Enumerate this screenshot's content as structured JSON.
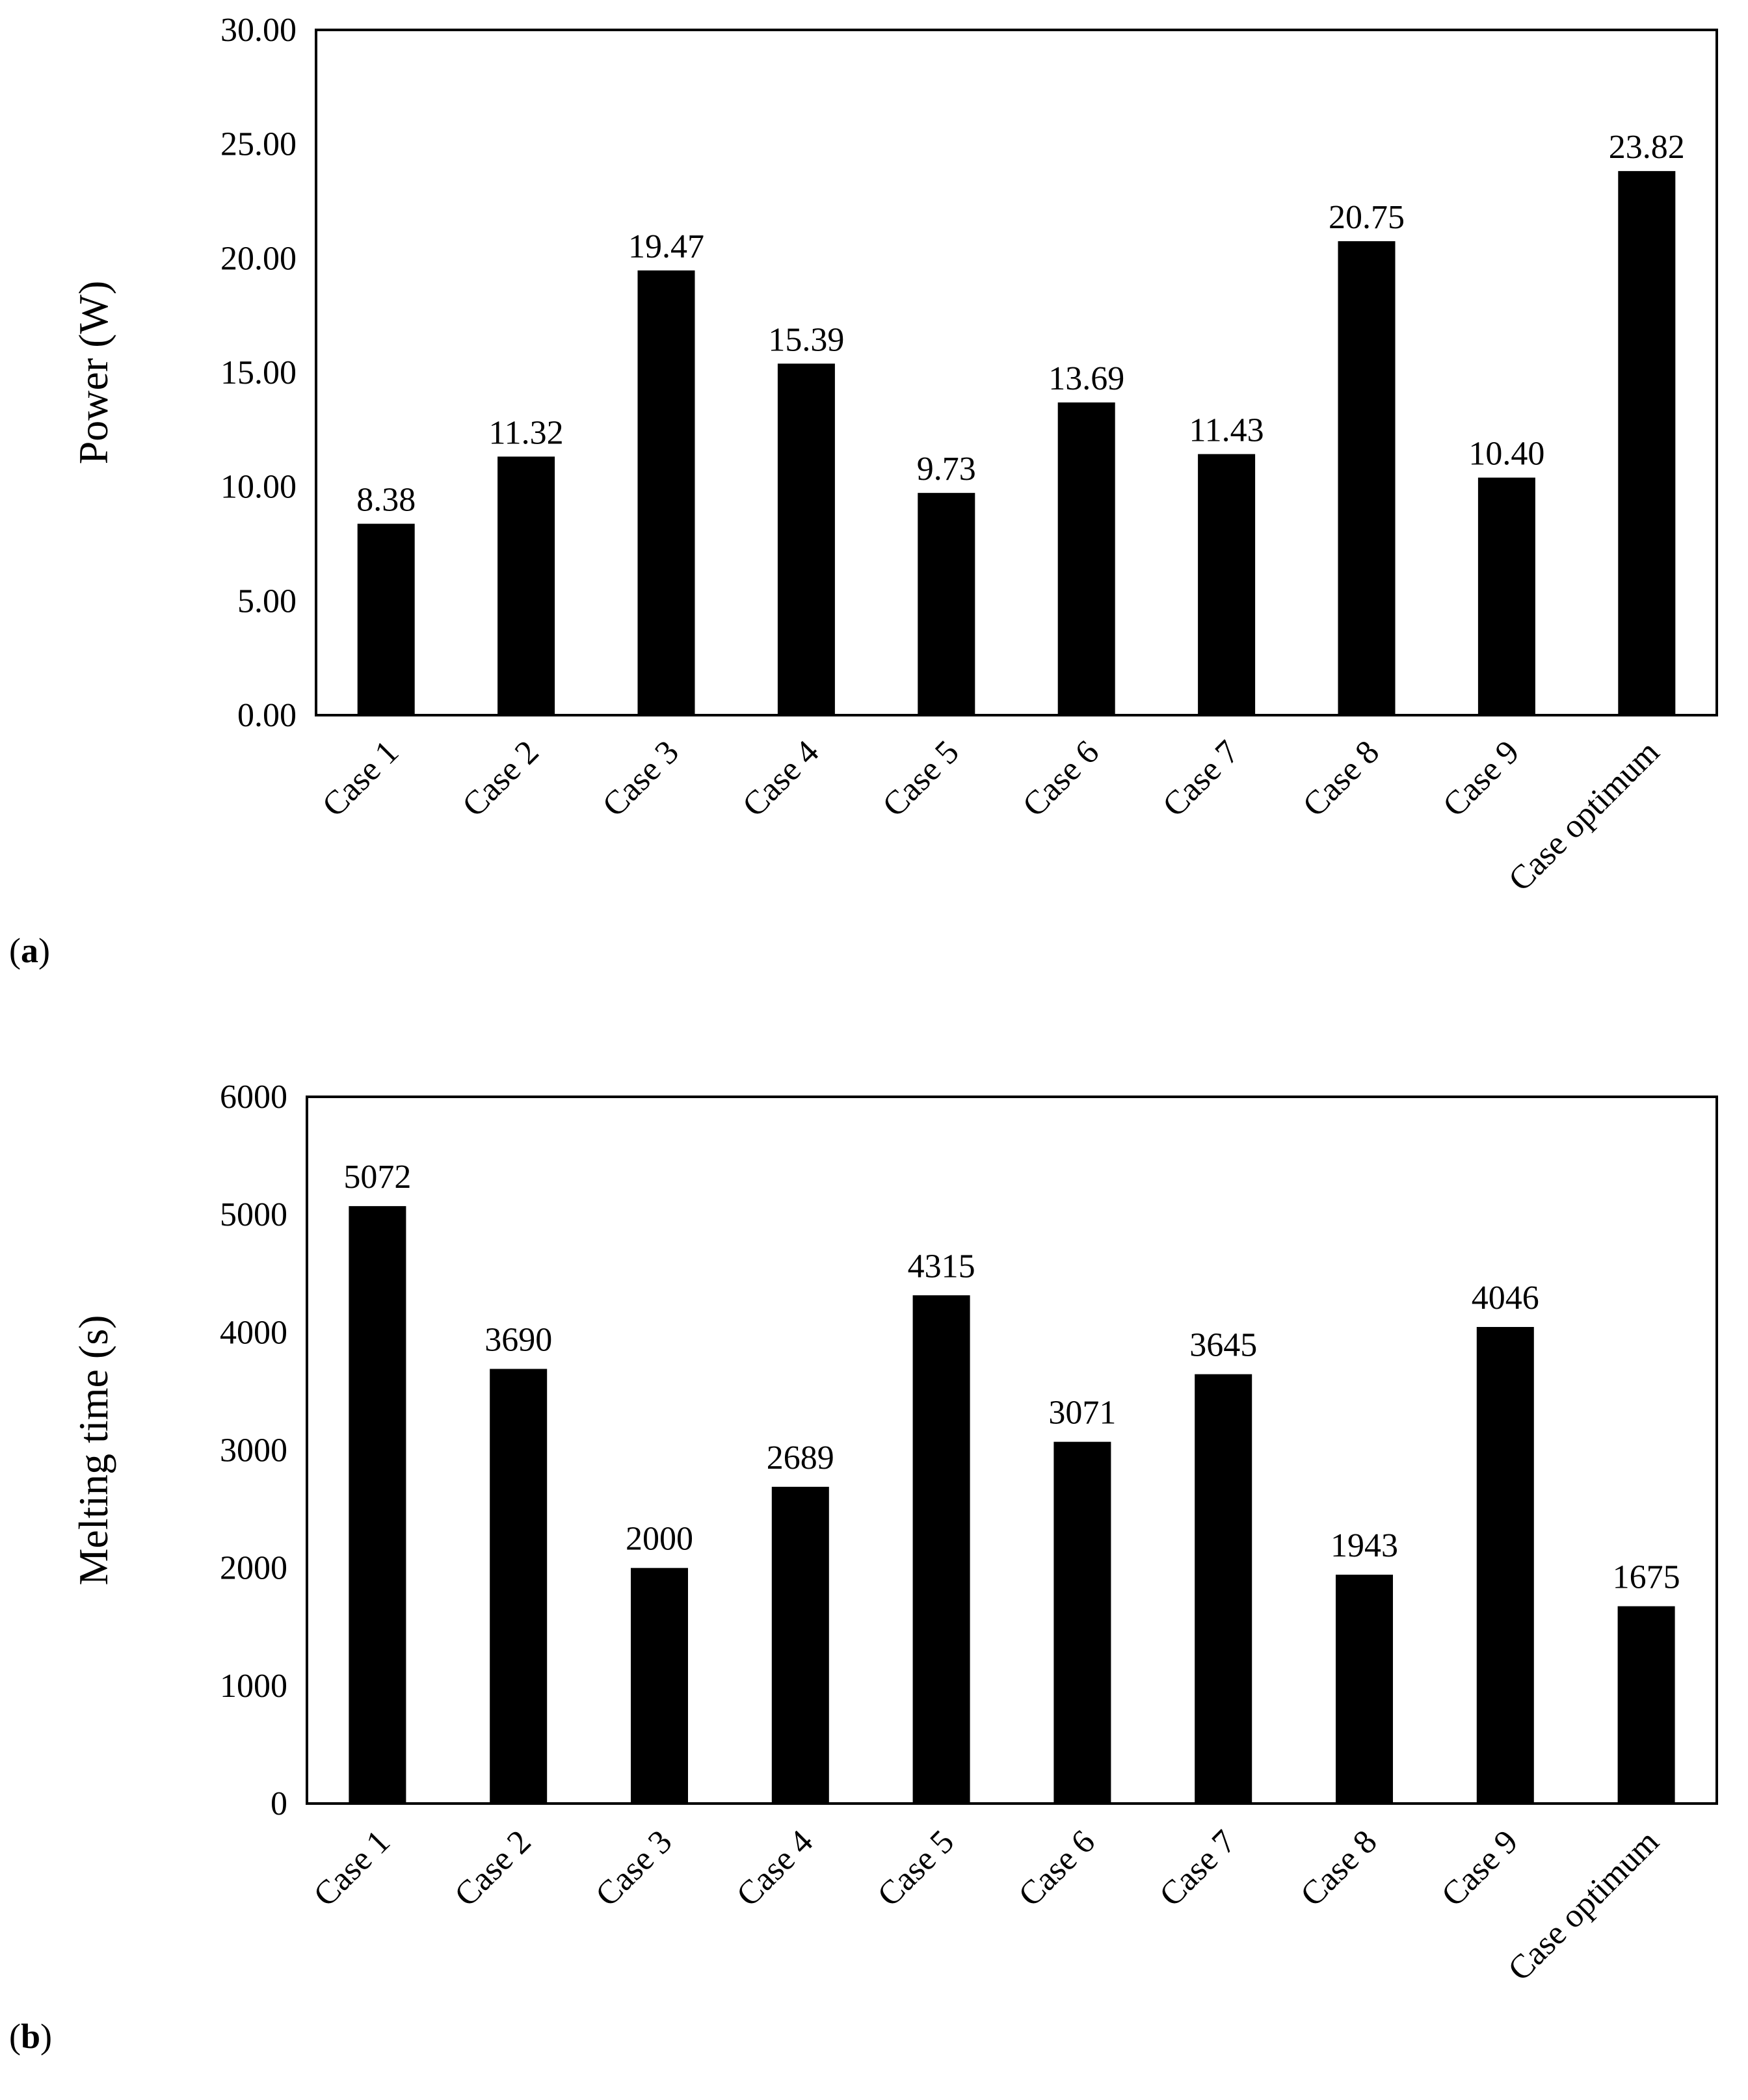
{
  "panels": [
    {
      "label_open": "(",
      "label_letter": "a",
      "label_close": ")"
    },
    {
      "label_open": "(",
      "label_letter": "b",
      "label_close": ")"
    }
  ],
  "chart_data": [
    {
      "type": "bar",
      "title": "",
      "xlabel": "",
      "ylabel": "Power (W)",
      "categories": [
        "Case 1",
        "Case 2",
        "Case 3",
        "Case 4",
        "Case 5",
        "Case 6",
        "Case 7",
        "Case 8",
        "Case 9",
        "Case optimum"
      ],
      "values": [
        8.38,
        11.32,
        19.47,
        15.39,
        9.73,
        13.69,
        11.43,
        20.75,
        10.4,
        23.82
      ],
      "value_labels": [
        "8.38",
        "11.32",
        "19.47",
        "15.39",
        "9.73",
        "13.69",
        "11.43",
        "20.75",
        "10.40",
        "23.82"
      ],
      "yticks": [
        "0.00",
        "5.00",
        "10.00",
        "15.00",
        "20.00",
        "25.00",
        "30.00"
      ],
      "ylim": [
        0,
        30
      ],
      "grid": false,
      "bar_color": "#000000"
    },
    {
      "type": "bar",
      "title": "",
      "xlabel": "",
      "ylabel": "Melting time (s)",
      "categories": [
        "Case 1",
        "Case 2",
        "Case 3",
        "Case 4",
        "Case 5",
        "Case 6",
        "Case 7",
        "Case 8",
        "Case 9",
        "Case optimum"
      ],
      "values": [
        5072,
        3690,
        2000,
        2689,
        4315,
        3071,
        3645,
        1943,
        4046,
        1675
      ],
      "value_labels": [
        "5072",
        "3690",
        "2000",
        "2689",
        "4315",
        "3071",
        "3645",
        "1943",
        "4046",
        "1675"
      ],
      "yticks": [
        "0",
        "1000",
        "2000",
        "3000",
        "4000",
        "5000",
        "6000"
      ],
      "ylim": [
        0,
        6000
      ],
      "grid": false,
      "bar_color": "#000000"
    }
  ]
}
